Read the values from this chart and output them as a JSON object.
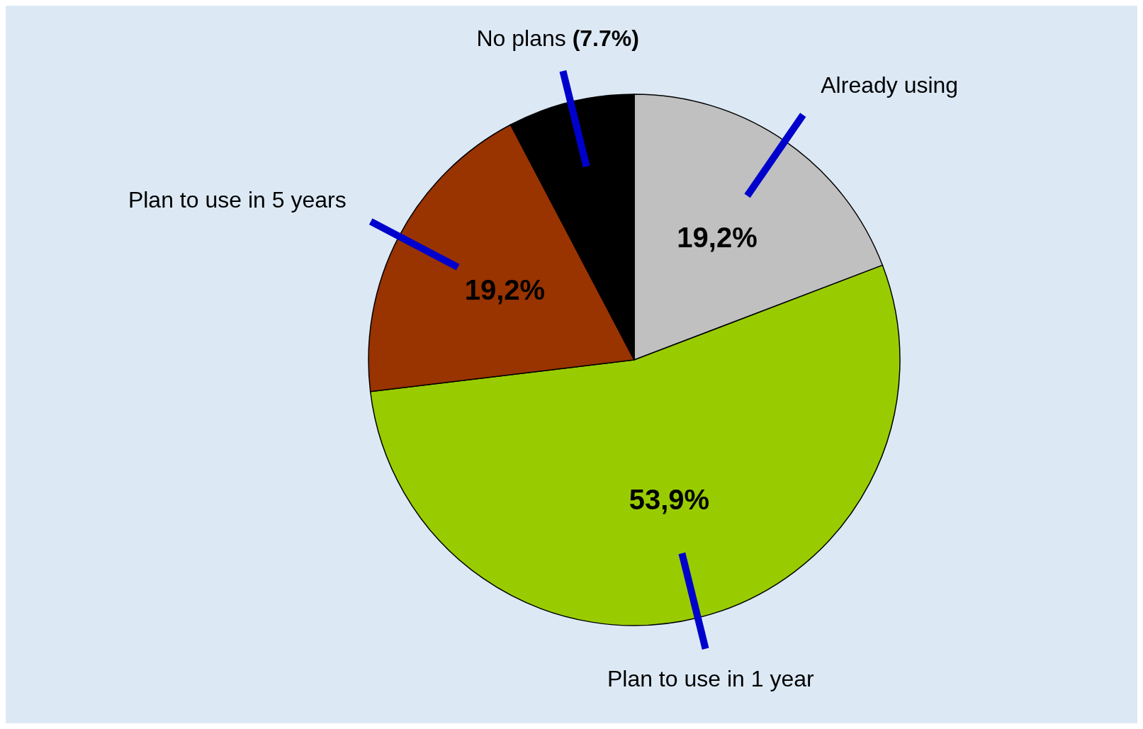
{
  "chart_data": {
    "type": "pie",
    "categories": [
      "Already using",
      "Plan to use in 1 year",
      "Plan to use in 5 years",
      "No plans"
    ],
    "values": [
      19.2,
      53.9,
      19.2,
      7.7
    ],
    "colors": [
      "#c0c0c0",
      "#99cc00",
      "#993300",
      "#000000"
    ],
    "value_labels": [
      "19,2%",
      "53,9%",
      "19,2%",
      "(7.7%)"
    ]
  }
}
